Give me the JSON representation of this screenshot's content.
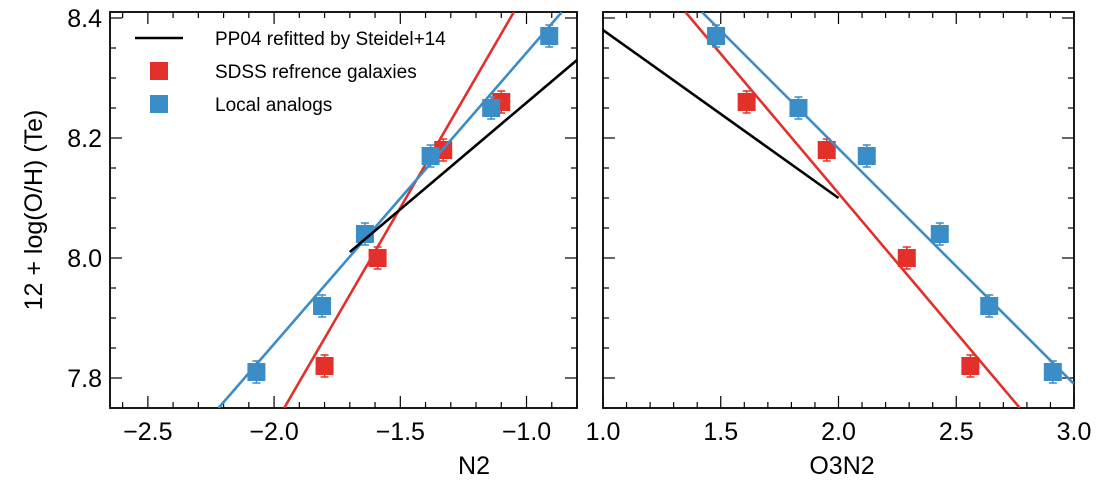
{
  "chart_data": [
    {
      "type": "scatter",
      "xlabel": "N2",
      "ylabel": "12 + log(O/H) (Te)",
      "xlim": [
        -2.65,
        -0.8
      ],
      "ylim": [
        7.75,
        8.41
      ],
      "xticks": [
        -2.5,
        -2.0,
        -1.5,
        -1.0
      ],
      "xtick_labels": [
        "−2.5",
        "−2.0",
        "−1.5",
        "−1.0"
      ],
      "yticks": [
        7.8,
        8.0,
        8.2,
        8.4
      ],
      "ytick_labels": [
        "7.8",
        "8.0",
        "8.2",
        "8.4"
      ],
      "legend": {
        "position": "top-left",
        "entries": [
          {
            "label": "PP04 refitted by Steidel+14",
            "color": "#000000",
            "marker": "line"
          },
          {
            "label": "SDSS refrence galaxies",
            "color": "#e3302b",
            "marker": "square"
          },
          {
            "label": "Local analogs",
            "color": "#3b8dc8",
            "marker": "square"
          }
        ]
      },
      "series": [
        {
          "name": "SDSS refrence galaxies",
          "color": "#e3302b",
          "points": [
            {
              "x": -1.8,
              "y": 7.82
            },
            {
              "x": -1.59,
              "y": 8.0
            },
            {
              "x": -1.33,
              "y": 8.18
            },
            {
              "x": -1.1,
              "y": 8.26
            }
          ],
          "fit": [
            [
              -1.96,
              7.75
            ],
            [
              -1.05,
              8.41
            ]
          ]
        },
        {
          "name": "Local analogs",
          "color": "#3b8dc8",
          "points": [
            {
              "x": -2.07,
              "y": 7.81
            },
            {
              "x": -1.81,
              "y": 7.92
            },
            {
              "x": -1.64,
              "y": 8.04
            },
            {
              "x": -1.38,
              "y": 8.17
            },
            {
              "x": -1.14,
              "y": 8.25
            },
            {
              "x": -0.91,
              "y": 8.37
            }
          ],
          "fit": [
            [
              -2.22,
              7.75
            ],
            [
              -0.86,
              8.41
            ]
          ]
        },
        {
          "name": "PP04 refitted by Steidel+14",
          "color": "#000000",
          "line": [
            [
              -1.7,
              8.01
            ],
            [
              -0.8,
              8.33
            ]
          ]
        }
      ]
    },
    {
      "type": "scatter",
      "xlabel": "O3N2",
      "ylabel": "",
      "xlim": [
        1.0,
        3.0
      ],
      "ylim": [
        7.75,
        8.41
      ],
      "xticks": [
        1.0,
        1.5,
        2.0,
        2.5,
        3.0
      ],
      "xtick_labels": [
        "1.0",
        "1.5",
        "2.0",
        "2.5",
        "3.0"
      ],
      "yticks": [
        7.8,
        8.0,
        8.2,
        8.4
      ],
      "series": [
        {
          "name": "SDSS refrence galaxies",
          "color": "#e3302b",
          "points": [
            {
              "x": 1.61,
              "y": 8.26
            },
            {
              "x": 1.95,
              "y": 8.18
            },
            {
              "x": 2.29,
              "y": 8.0
            },
            {
              "x": 2.56,
              "y": 7.82
            }
          ],
          "fit": [
            [
              1.35,
              8.41
            ],
            [
              2.77,
              7.75
            ]
          ]
        },
        {
          "name": "Local analogs",
          "color": "#3b8dc8",
          "points": [
            {
              "x": 1.48,
              "y": 8.37
            },
            {
              "x": 1.83,
              "y": 8.25
            },
            {
              "x": 2.12,
              "y": 8.17
            },
            {
              "x": 2.43,
              "y": 8.04
            },
            {
              "x": 2.64,
              "y": 7.92
            },
            {
              "x": 2.91,
              "y": 7.81
            }
          ],
          "fit": [
            [
              1.42,
              8.41
            ],
            [
              3.0,
              7.79
            ]
          ]
        },
        {
          "name": "PP04 refitted by Steidel+14",
          "color": "#000000",
          "line": [
            [
              1.0,
              8.38
            ],
            [
              2.0,
              8.1
            ]
          ]
        }
      ]
    }
  ]
}
